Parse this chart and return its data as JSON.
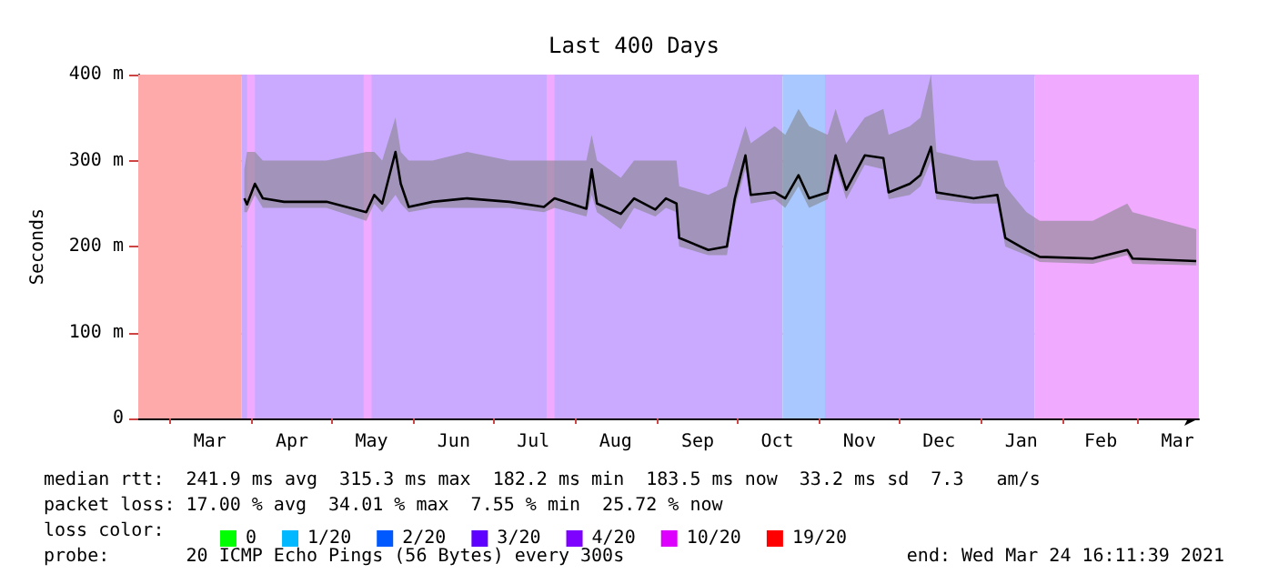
{
  "chart_data": {
    "type": "line",
    "title": "Last 400 Days",
    "ylabel": "Seconds",
    "legend_title": "loss color:",
    "legend": "bottom",
    "xlim": [
      "2020-02-18",
      "2021-03-24"
    ],
    "xticks": [
      {
        "value": "2020-03-01",
        "label": null
      },
      {
        "value": "2020-03-16",
        "label": "Mar"
      },
      {
        "value": "2020-04-01",
        "label": null
      },
      {
        "value": "2020-04-16",
        "label": "Apr"
      },
      {
        "value": "2020-05-01",
        "label": null
      },
      {
        "value": "2020-05-16",
        "label": "May"
      },
      {
        "value": "2020-06-01",
        "label": null
      },
      {
        "value": "2020-06-16",
        "label": "Jun"
      },
      {
        "value": "2020-07-01",
        "label": null
      },
      {
        "value": "2020-07-16",
        "label": "Jul"
      },
      {
        "value": "2020-08-01",
        "label": null
      },
      {
        "value": "2020-08-16",
        "label": "Aug"
      },
      {
        "value": "2020-09-01",
        "label": null
      },
      {
        "value": "2020-09-16",
        "label": "Sep"
      },
      {
        "value": "2020-10-01",
        "label": null
      },
      {
        "value": "2020-10-16",
        "label": "Oct"
      },
      {
        "value": "2020-11-01",
        "label": null
      },
      {
        "value": "2020-11-16",
        "label": "Nov"
      },
      {
        "value": "2020-12-01",
        "label": null
      },
      {
        "value": "2020-12-16",
        "label": "Dec"
      },
      {
        "value": "2021-01-01",
        "label": null
      },
      {
        "value": "2021-01-16",
        "label": "Jan"
      },
      {
        "value": "2021-02-01",
        "label": null
      },
      {
        "value": "2021-02-15",
        "label": "Feb"
      },
      {
        "value": "2021-03-01",
        "label": null
      },
      {
        "value": "2021-03-16",
        "label": "Mar"
      }
    ],
    "ylim": [
      0,
      400
    ],
    "yticks": [
      0,
      {
        "value": 100,
        "label": "100 m"
      },
      {
        "value": 200,
        "label": "200 m"
      },
      {
        "value": 300,
        "label": "300 m"
      },
      {
        "value": 400,
        "label": "400 m"
      }
    ],
    "grid": true,
    "marker": "none",
    "line_style": "solid",
    "x": [
      "2020-03-29",
      "2020-03-30",
      "2020-04-02",
      "2020-04-05",
      "2020-04-13",
      "2020-04-29",
      "2020-05-14",
      "2020-05-17",
      "2020-05-20",
      "2020-05-25",
      "2020-05-27",
      "2020-05-30",
      "2020-06-08",
      "2020-06-21",
      "2020-07-07",
      "2020-07-20",
      "2020-07-24",
      "2020-08-05",
      "2020-08-07",
      "2020-08-09",
      "2020-08-18",
      "2020-08-23",
      "2020-08-31",
      "2020-09-04",
      "2020-09-08",
      "2020-09-09",
      "2020-09-20",
      "2020-09-27",
      "2020-09-30",
      "2020-10-04",
      "2020-10-06",
      "2020-10-15",
      "2020-10-19",
      "2020-10-24",
      "2020-10-28",
      "2020-11-04",
      "2020-11-07",
      "2020-11-11",
      "2020-11-18",
      "2020-11-25",
      "2020-11-27",
      "2020-12-05",
      "2020-12-09",
      "2020-12-13",
      "2020-12-15",
      "2020-12-29",
      "2021-01-07",
      "2021-01-10",
      "2021-01-18",
      "2021-01-23",
      "2021-02-12",
      "2021-02-25",
      "2021-02-27",
      "2021-03-23"
    ],
    "series": [
      {
        "color": "#000000",
        "values": [
          256,
          249,
          273,
          256,
          252,
          252,
          240,
          260,
          250,
          310,
          273,
          246,
          252,
          256,
          252,
          246,
          256,
          244,
          290,
          250,
          238,
          256,
          243,
          256,
          250,
          210,
          196,
          200,
          256,
          306,
          260,
          263,
          256,
          283,
          256,
          263,
          306,
          266,
          306,
          303,
          263,
          273,
          283,
          316,
          263,
          256,
          260,
          210,
          196,
          188,
          186,
          196,
          186,
          183
        ],
        "lower": [
          240,
          240,
          260,
          245,
          245,
          245,
          230,
          250,
          240,
          260,
          250,
          240,
          245,
          245,
          245,
          240,
          245,
          235,
          260,
          240,
          220,
          245,
          235,
          245,
          240,
          200,
          190,
          190,
          245,
          290,
          250,
          255,
          245,
          270,
          245,
          255,
          295,
          255,
          295,
          290,
          255,
          260,
          270,
          300,
          255,
          250,
          250,
          200,
          190,
          182,
          180,
          190,
          180,
          178
        ],
        "upper": [
          290,
          310,
          310,
          300,
          300,
          300,
          310,
          310,
          300,
          350,
          310,
          300,
          300,
          310,
          300,
          300,
          300,
          300,
          330,
          300,
          280,
          300,
          300,
          300,
          300,
          270,
          260,
          270,
          300,
          340,
          320,
          340,
          330,
          360,
          340,
          330,
          360,
          320,
          350,
          360,
          330,
          340,
          350,
          400,
          310,
          300,
          300,
          270,
          240,
          230,
          230,
          250,
          240,
          220
        ]
      },
      {
        "type": "area",
        "name": "0",
        "color": "#00ff00",
        "values": [
          null,
          null,
          null,
          null,
          null,
          null,
          null,
          null,
          null,
          null,
          null,
          null,
          null,
          null,
          null,
          null,
          null,
          null,
          null,
          null,
          null,
          null,
          null,
          null,
          null,
          null,
          null,
          null,
          null,
          null,
          null,
          null,
          null,
          null,
          null,
          null,
          null,
          null,
          null,
          null,
          null,
          null,
          null,
          null,
          null,
          null,
          null,
          null,
          null,
          null,
          null,
          null,
          null,
          null
        ]
      },
      {
        "type": "area",
        "name": "1/20",
        "color": "#00b8ff",
        "values": [
          null,
          null,
          null,
          null,
          null,
          null,
          null,
          null,
          null,
          null,
          null,
          null,
          null,
          null,
          null,
          null,
          null,
          null,
          null,
          null,
          null,
          null,
          null,
          null,
          null,
          null,
          null,
          null,
          null,
          null,
          null,
          null,
          null,
          null,
          null,
          null,
          null,
          null,
          null,
          null,
          null,
          null,
          null,
          null,
          null,
          null,
          null,
          null,
          null,
          null,
          null,
          null,
          null,
          null
        ]
      },
      {
        "type": "area",
        "name": "2/20",
        "color": "#0059ff",
        "values": [
          null,
          null,
          null,
          null,
          null,
          null,
          null,
          null,
          null,
          null,
          null,
          null,
          null,
          null,
          null,
          null,
          null,
          null,
          null,
          null,
          null,
          null,
          null,
          null,
          null,
          null,
          null,
          null,
          null,
          null,
          null,
          null,
          null,
          null,
          null,
          null,
          null,
          null,
          null,
          null,
          null,
          null,
          null,
          null,
          null,
          null,
          null,
          null,
          null,
          null,
          null,
          null,
          null,
          null
        ]
      },
      {
        "type": "area",
        "name": "3/20",
        "color": "#5e00ff",
        "values": [
          null,
          null,
          null,
          null,
          null,
          null,
          null,
          null,
          null,
          null,
          null,
          null,
          null,
          null,
          null,
          null,
          null,
          null,
          null,
          null,
          null,
          null,
          null,
          null,
          null,
          null,
          null,
          null,
          null,
          null,
          null,
          null,
          null,
          null,
          null,
          null,
          null,
          null,
          null,
          null,
          null,
          null,
          null,
          null,
          null,
          null,
          null,
          null,
          null,
          null,
          null,
          null,
          null,
          null
        ]
      },
      {
        "type": "area",
        "name": "4/20",
        "color": "#7e00ff",
        "values": [
          null,
          null,
          null,
          null,
          null,
          null,
          null,
          null,
          null,
          null,
          null,
          null,
          null,
          null,
          null,
          null,
          null,
          null,
          null,
          null,
          null,
          null,
          null,
          null,
          null,
          null,
          null,
          null,
          null,
          null,
          null,
          null,
          null,
          null,
          null,
          null,
          null,
          null,
          null,
          null,
          null,
          null,
          null,
          null,
          null,
          null,
          null,
          null,
          null,
          null,
          null,
          null,
          null,
          null
        ]
      },
      {
        "type": "area",
        "name": "10/20",
        "color": "#dd00ff",
        "values": [
          null,
          null,
          null,
          null,
          null,
          null,
          null,
          null,
          null,
          null,
          null,
          null,
          null,
          null,
          null,
          null,
          null,
          null,
          null,
          null,
          null,
          null,
          null,
          null,
          null,
          null,
          null,
          null,
          null,
          null,
          null,
          null,
          null,
          null,
          null,
          null,
          null,
          null,
          null,
          null,
          null,
          null,
          null,
          null,
          null,
          null,
          null,
          null,
          null,
          null,
          null,
          null,
          null,
          null
        ]
      },
      {
        "type": "area",
        "name": "19/20",
        "color": "#ff0000",
        "values": [
          null,
          null,
          null,
          null,
          null,
          null,
          null,
          null,
          null,
          null,
          null,
          null,
          null,
          null,
          null,
          null,
          null,
          null,
          null,
          null,
          null,
          null,
          null,
          null,
          null,
          null,
          null,
          null,
          null,
          null,
          null,
          null,
          null,
          null,
          null,
          null,
          null,
          null,
          null,
          null,
          null,
          null,
          null,
          null,
          null,
          null,
          null,
          null,
          null,
          null,
          null,
          null,
          null,
          null
        ]
      }
    ],
    "bands": [
      {
        "axis": "x",
        "from": "2020-02-18",
        "to": "2020-03-28",
        "color": "#ffaaaa"
      },
      {
        "axis": "x",
        "from": "2020-03-28",
        "to": "2020-10-18",
        "color": "#c9aaff"
      },
      {
        "axis": "x",
        "from": "2020-03-30",
        "to": "2020-04-02",
        "color": "#f0aaff"
      },
      {
        "axis": "x",
        "from": "2020-05-13",
        "to": "2020-05-16",
        "color": "#f0aaff"
      },
      {
        "axis": "x",
        "from": "2020-07-21",
        "to": "2020-07-24",
        "color": "#f0aaff"
      },
      {
        "axis": "x",
        "from": "2020-10-18",
        "to": "2020-11-03",
        "color": "#a8c8ff"
      },
      {
        "axis": "x",
        "from": "2020-11-03",
        "to": "2021-01-21",
        "color": "#c9aaff"
      },
      {
        "axis": "x",
        "from": "2021-01-21",
        "to": "2021-03-24",
        "color": "#f0aaff"
      }
    ],
    "annotations": [
      "median rtt:  241.9 ms avg  315.3 ms max  182.2 ms min  183.5 ms now  33.2 ms sd  7.3   am/s",
      "packet loss: 17.00 % avg  34.01 % max  7.55 % min  25.72 % now",
      "probe:       20 ICMP Echo Pings (56 Bytes) every 300s",
      "end: Wed Mar 24 16:11:39 2021"
    ]
  }
}
